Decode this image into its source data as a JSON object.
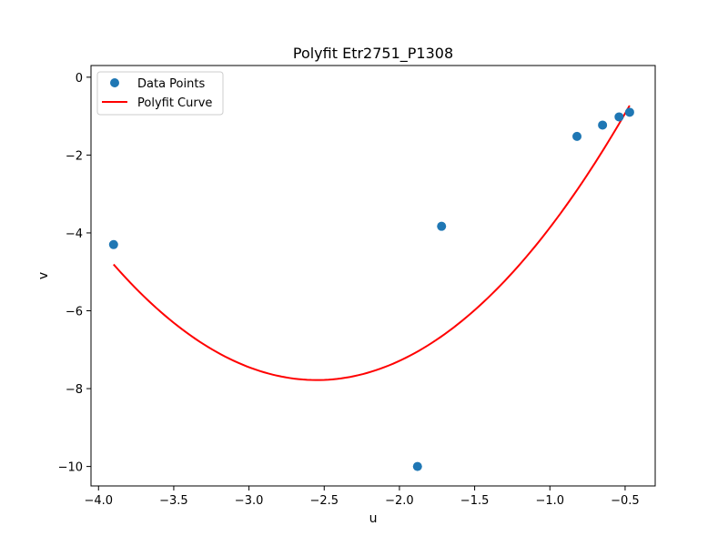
{
  "chart_data": {
    "type": "scatter",
    "title": "Polyfit Etr2751_P1308",
    "xlabel": "u",
    "ylabel": "v",
    "xlim": [
      -4.05,
      -0.3
    ],
    "ylim": [
      -10.5,
      0.3
    ],
    "xticks": [
      -4.0,
      -3.5,
      -3.0,
      -2.5,
      -2.0,
      -1.5,
      -1.0,
      -0.5
    ],
    "xtick_labels": [
      "−4.0",
      "−3.5",
      "−3.0",
      "−2.5",
      "−2.0",
      "−1.5",
      "−1.0",
      "−0.5"
    ],
    "yticks": [
      0,
      -2,
      -4,
      -6,
      -8,
      -10
    ],
    "ytick_labels": [
      "0",
      "−2",
      "−4",
      "−6",
      "−8",
      "−10"
    ],
    "grid": false,
    "legend_position": "upper-left",
    "series": [
      {
        "name": "Data Points",
        "kind": "scatter",
        "color": "#1f77b4",
        "points": [
          {
            "x": -3.9,
            "y": -4.3
          },
          {
            "x": -1.88,
            "y": -10.0
          },
          {
            "x": -1.72,
            "y": -3.83
          },
          {
            "x": -0.82,
            "y": -1.52
          },
          {
            "x": -0.65,
            "y": -1.23
          },
          {
            "x": -0.54,
            "y": -1.02
          },
          {
            "x": -0.47,
            "y": -0.9
          }
        ]
      },
      {
        "name": "Polyfit Curve",
        "kind": "line",
        "color": "#ff0000",
        "polynomial": {
          "degree": 2,
          "vertex_x": -2.55,
          "vertex_y": -7.78,
          "a": 1.63
        },
        "x_range": [
          -3.9,
          -0.47
        ]
      }
    ]
  }
}
